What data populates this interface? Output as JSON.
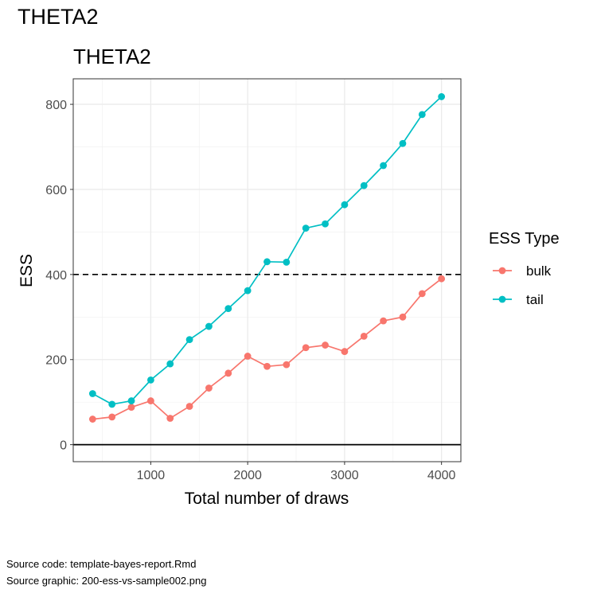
{
  "page_title": "THETA2",
  "source_code": "Source code: template-bayes-report.Rmd",
  "source_graphic": "Source graphic: 200-ess-vs-sample002.png",
  "colors": {
    "bulk": "#F8766D",
    "tail": "#00BFC4",
    "reference": "#000000"
  },
  "chart_data": {
    "type": "line",
    "title": "THETA2",
    "xlabel": "Total number of draws",
    "ylabel": "ESS",
    "x": [
      400,
      600,
      800,
      1000,
      1200,
      1400,
      1600,
      1800,
      2000,
      2200,
      2400,
      2600,
      2800,
      3000,
      3200,
      3400,
      3600,
      3800,
      4000
    ],
    "series": [
      {
        "name": "bulk",
        "values": [
          60,
          65,
          88,
          103,
          62,
          90,
          133,
          168,
          208,
          184,
          188,
          228,
          234,
          219,
          255,
          291,
          300,
          355,
          390
        ]
      },
      {
        "name": "tail",
        "values": [
          120,
          95,
          103,
          152,
          190,
          247,
          278,
          320,
          362,
          430,
          429,
          509,
          519,
          564,
          609,
          656,
          708,
          776,
          818
        ]
      }
    ],
    "xlim": [
      200,
      4200
    ],
    "ylim": [
      -40,
      860
    ],
    "xticks": [
      1000,
      2000,
      3000,
      4000
    ],
    "yticks": [
      0,
      200,
      400,
      600,
      800
    ],
    "reference_lines": [
      {
        "y": 400,
        "style": "dashed"
      },
      {
        "y": 0,
        "style": "solid"
      }
    ],
    "legend": {
      "title": "ESS Type",
      "position": "right",
      "entries": [
        "bulk",
        "tail"
      ]
    },
    "grid": true
  }
}
